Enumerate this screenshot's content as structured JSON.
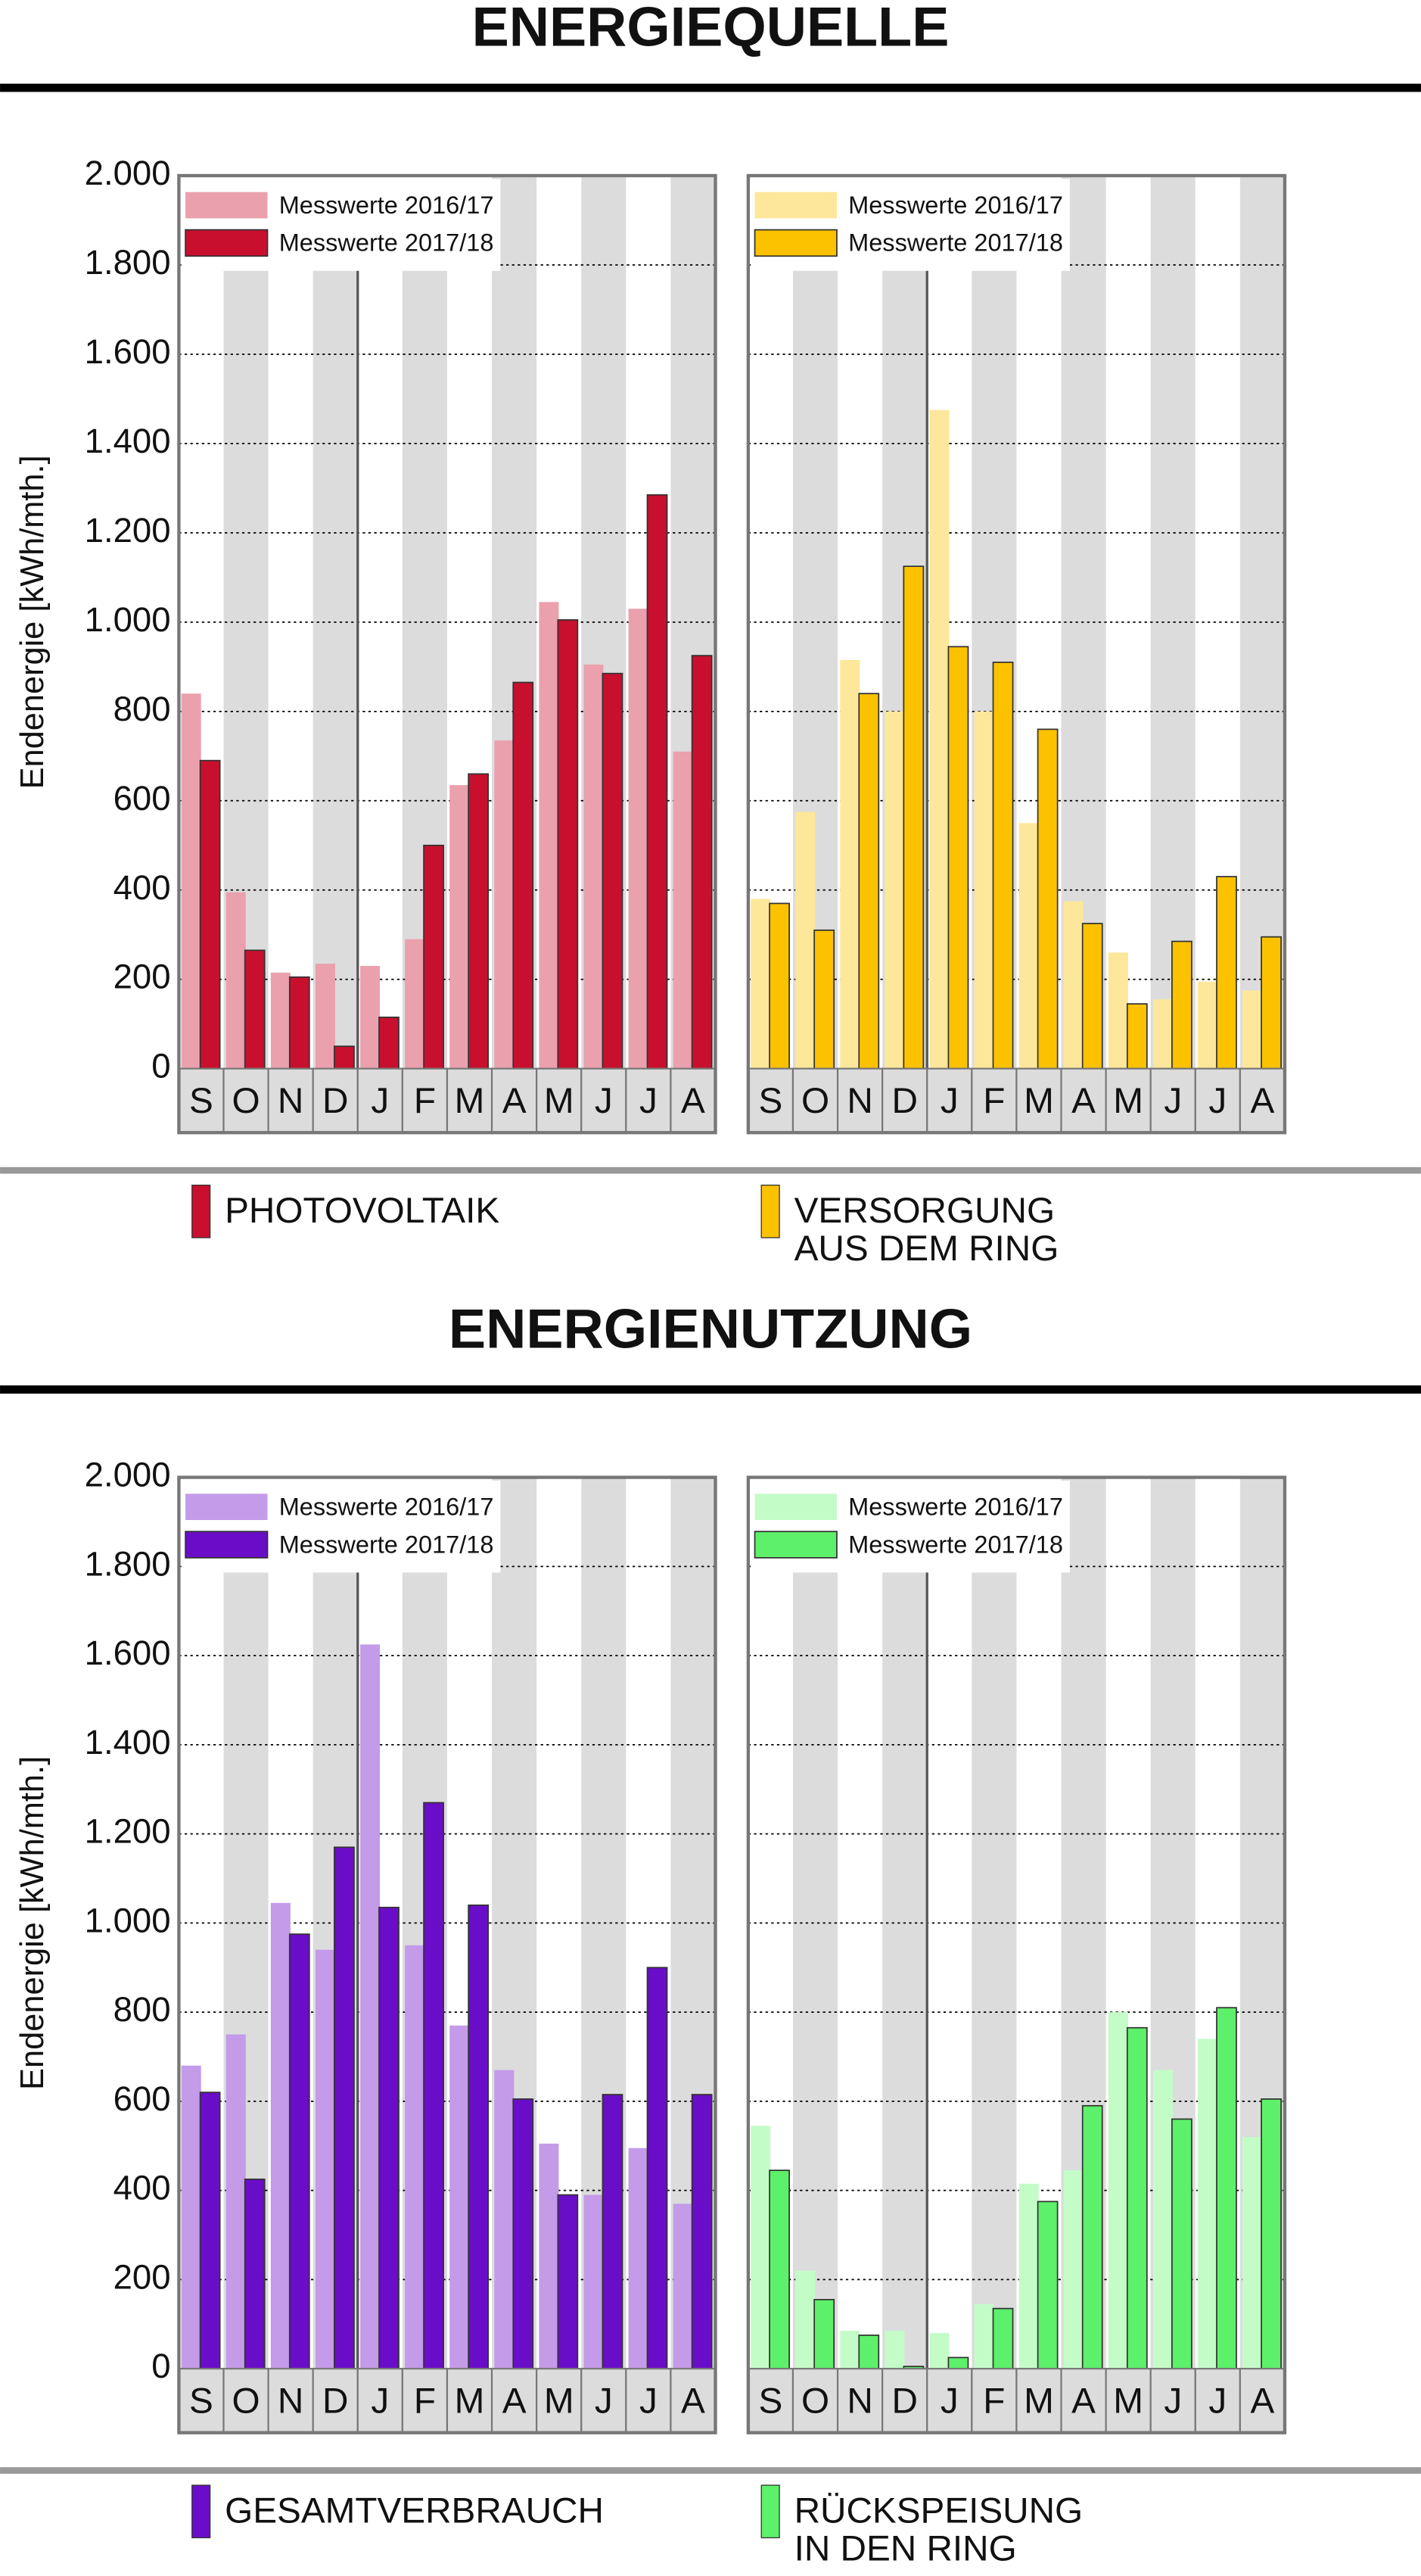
{
  "chart_data": [
    {
      "type": "bar",
      "title": "ENERGIEQUELLE",
      "ylabel": "Endenergie [kWh/mth.]",
      "label": [
        "PHOTOVOLTAIK"
      ],
      "categories": [
        "S",
        "O",
        "N",
        "D",
        "J",
        "F",
        "M",
        "A",
        "M",
        "J",
        "J",
        "A"
      ],
      "series": [
        {
          "name": "Messwerte 2016/17",
          "color": "#eba0ae",
          "values": [
            840,
            395,
            215,
            235,
            230,
            290,
            635,
            735,
            1045,
            905,
            1030,
            710
          ]
        },
        {
          "name": "Messwerte 2017/18",
          "color": "#c8102e",
          "values": [
            690,
            265,
            205,
            50,
            115,
            500,
            660,
            865,
            1005,
            885,
            1285,
            925
          ]
        }
      ],
      "ylim": [
        0,
        2000
      ],
      "yticks": [
        0,
        200,
        400,
        600,
        800,
        {
          "value": 1000,
          "label": "1.000"
        },
        {
          "value": 1200,
          "label": "1.200"
        },
        {
          "value": 1400,
          "label": "1.400"
        },
        {
          "value": 1600,
          "label": "1.600"
        },
        {
          "value": 1800,
          "label": "1.800"
        },
        {
          "value": 2000,
          "label": "2.000"
        }
      ],
      "grid": true
    },
    {
      "type": "bar",
      "label": [
        "VERSORGUNG",
        "AUS DEM RING"
      ],
      "categories": [
        "S",
        "O",
        "N",
        "D",
        "J",
        "F",
        "M",
        "A",
        "M",
        "J",
        "J",
        "A"
      ],
      "series": [
        {
          "name": "Messwerte 2016/17",
          "color": "#fde79a",
          "values": [
            380,
            575,
            915,
            800,
            1475,
            800,
            550,
            375,
            260,
            155,
            195,
            175
          ]
        },
        {
          "name": "Messwerte 2017/18",
          "color": "#fcc200",
          "values": [
            370,
            310,
            840,
            1125,
            945,
            910,
            760,
            325,
            145,
            285,
            430,
            295
          ]
        }
      ],
      "ylim": [
        0,
        2000
      ],
      "yticks": [
        0,
        200,
        400,
        600,
        800,
        {
          "value": 1000,
          "label": "1.000"
        },
        {
          "value": 1200,
          "label": "1.200"
        },
        {
          "value": 1400,
          "label": "1.400"
        },
        {
          "value": 1600,
          "label": "1.600"
        },
        {
          "value": 1800,
          "label": "1.800"
        },
        {
          "value": 2000,
          "label": "2.000"
        }
      ],
      "grid": true
    },
    {
      "type": "bar",
      "title": "ENERGIENUTZUNG",
      "ylabel": "Endenergie [kWh/mth.]",
      "label": [
        "GESAMTVERBRAUCH"
      ],
      "categories": [
        "S",
        "O",
        "N",
        "D",
        "J",
        "F",
        "M",
        "A",
        "M",
        "J",
        "J",
        "A"
      ],
      "series": [
        {
          "name": "Messwerte 2016/17",
          "color": "#c39be8",
          "values": [
            680,
            750,
            1045,
            940,
            1625,
            950,
            770,
            670,
            505,
            390,
            495,
            370
          ]
        },
        {
          "name": "Messwerte 2017/18",
          "color": "#6a0dc8",
          "values": [
            620,
            425,
            975,
            1170,
            1035,
            1270,
            1040,
            605,
            390,
            615,
            900,
            615
          ]
        }
      ],
      "ylim": [
        0,
        2000
      ],
      "yticks": [
        0,
        200,
        400,
        600,
        800,
        {
          "value": 1000,
          "label": "1.000"
        },
        {
          "value": 1200,
          "label": "1.200"
        },
        {
          "value": 1400,
          "label": "1.400"
        },
        {
          "value": 1600,
          "label": "1.600"
        },
        {
          "value": 1800,
          "label": "1.800"
        },
        {
          "value": 2000,
          "label": "2.000"
        }
      ],
      "grid": true
    },
    {
      "type": "bar",
      "label": [
        "RÜCKSPEISUNG",
        "IN DEN RING"
      ],
      "categories": [
        "S",
        "O",
        "N",
        "D",
        "J",
        "F",
        "M",
        "A",
        "M",
        "J",
        "J",
        "A"
      ],
      "series": [
        {
          "name": "Messwerte 2016/17",
          "color": "#c4fcc8",
          "values": [
            545,
            220,
            85,
            85,
            80,
            145,
            415,
            445,
            800,
            670,
            740,
            520
          ]
        },
        {
          "name": "Messwerte 2017/18",
          "color": "#5df06a",
          "values": [
            445,
            155,
            75,
            5,
            25,
            135,
            375,
            590,
            765,
            560,
            810,
            605
          ]
        }
      ],
      "ylim": [
        0,
        2000
      ],
      "yticks": [
        0,
        200,
        400,
        600,
        800,
        {
          "value": 1000,
          "label": "1.000"
        },
        {
          "value": 1200,
          "label": "1.200"
        },
        {
          "value": 1400,
          "label": "1.400"
        },
        {
          "value": 1600,
          "label": "1.600"
        },
        {
          "value": 1800,
          "label": "1.800"
        },
        {
          "value": 2000,
          "label": "2.000"
        }
      ],
      "grid": true
    }
  ]
}
